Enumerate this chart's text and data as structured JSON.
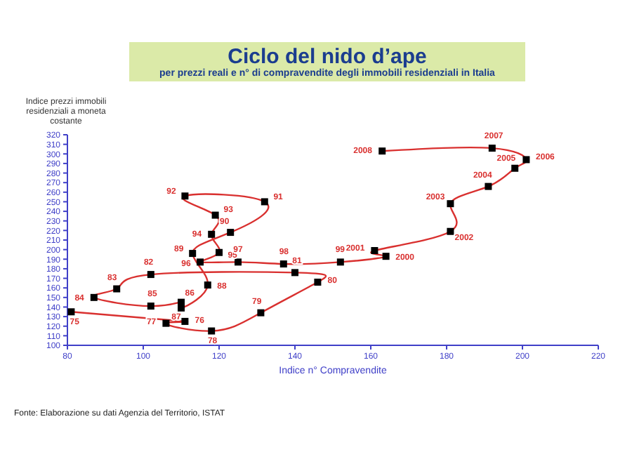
{
  "chart_data": {
    "type": "line",
    "title": "Ciclo del nido d’ape",
    "subtitle": "per prezzi reali e n° di compravendite degli immobili residenziali in Italia",
    "xlabel": "Indice n° Compravendite",
    "ylabel": "Indice prezzi immobili residenziali a moneta costante",
    "x": [
      81,
      111,
      106,
      118,
      131,
      146,
      140,
      102,
      93,
      87,
      102,
      110,
      110,
      117,
      113,
      123,
      132,
      111,
      119,
      118,
      120,
      115,
      125,
      137,
      152,
      164,
      161,
      181,
      181,
      191,
      198,
      201,
      192,
      163
    ],
    "series": [
      {
        "color": "#d9302f",
        "values": [
          135,
          125,
          123,
          115,
          134,
          166,
          176,
          174,
          159,
          150,
          141,
          145,
          139,
          163,
          196,
          218,
          250,
          256,
          236,
          216,
          197,
          187,
          187,
          185,
          187,
          193,
          199,
          219,
          248,
          266,
          285,
          294,
          306,
          303
        ]
      }
    ],
    "xlim": [
      80,
      220
    ],
    "xticks": [
      80,
      100,
      120,
      140,
      160,
      180,
      200,
      220
    ],
    "ylim": [
      100,
      320
    ],
    "yticks": [
      100,
      110,
      120,
      130,
      140,
      150,
      160,
      170,
      180,
      190,
      200,
      210,
      220,
      230,
      240,
      250,
      260,
      270,
      280,
      290,
      300,
      310,
      320
    ],
    "marker": "square",
    "grid": false,
    "legend": false,
    "annotations": [
      {
        "text": "75",
        "x": 81,
        "y": 135
      },
      {
        "text": "76",
        "x": 111,
        "y": 125
      },
      {
        "text": "77",
        "x": 106,
        "y": 123
      },
      {
        "text": "78",
        "x": 118,
        "y": 115
      },
      {
        "text": "79",
        "x": 131,
        "y": 134
      },
      {
        "text": "80",
        "x": 146,
        "y": 166
      },
      {
        "text": "81",
        "x": 140,
        "y": 176
      },
      {
        "text": "82",
        "x": 102,
        "y": 174
      },
      {
        "text": "83",
        "x": 93,
        "y": 159
      },
      {
        "text": "84",
        "x": 87,
        "y": 150
      },
      {
        "text": "85",
        "x": 102,
        "y": 141
      },
      {
        "text": "86",
        "x": 110,
        "y": 145
      },
      {
        "text": "87",
        "x": 110,
        "y": 139
      },
      {
        "text": "88",
        "x": 117,
        "y": 163
      },
      {
        "text": "89",
        "x": 113,
        "y": 196
      },
      {
        "text": "90",
        "x": 123,
        "y": 218
      },
      {
        "text": "91",
        "x": 132,
        "y": 250
      },
      {
        "text": "92",
        "x": 111,
        "y": 256
      },
      {
        "text": "93",
        "x": 119,
        "y": 236
      },
      {
        "text": "94",
        "x": 118,
        "y": 216
      },
      {
        "text": "95",
        "x": 120,
        "y": 197
      },
      {
        "text": "96",
        "x": 115,
        "y": 187
      },
      {
        "text": "97",
        "x": 125,
        "y": 187
      },
      {
        "text": "98",
        "x": 137,
        "y": 185
      },
      {
        "text": "99",
        "x": 152,
        "y": 187
      },
      {
        "text": "2000",
        "x": 164,
        "y": 193
      },
      {
        "text": "2001",
        "x": 161,
        "y": 199
      },
      {
        "text": "2002",
        "x": 181,
        "y": 219
      },
      {
        "text": "2003",
        "x": 181,
        "y": 248
      },
      {
        "text": "2004",
        "x": 191,
        "y": 266
      },
      {
        "text": "2005",
        "x": 198,
        "y": 285
      },
      {
        "text": "2006",
        "x": 201,
        "y": 294
      },
      {
        "text": "2007",
        "x": 192,
        "y": 306
      },
      {
        "text": "2008",
        "x": 163,
        "y": 303
      },
      "Fonte: Elaborazione su dati Agenzia del Territorio, ISTAT"
    ]
  }
}
